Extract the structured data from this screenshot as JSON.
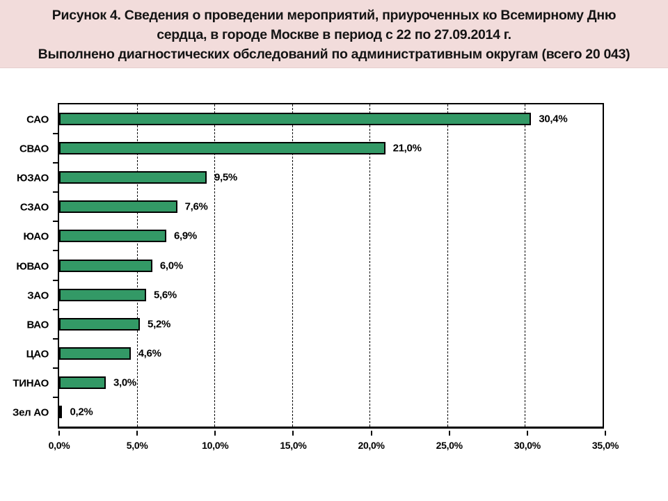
{
  "colors": {
    "title_bg": "#f2dcdb",
    "title_text": "#141414",
    "bar_fill": "#339966",
    "bar_border": "#000000",
    "axis": "#000000",
    "plot_bg": "#ffffff"
  },
  "chart_data": {
    "type": "bar",
    "orientation": "horizontal",
    "title_lines": [
      "Рисунок 4. Сведения о проведении мероприятий, приуроченных ко Всемирному Дню",
      "сердца, в городе Москве в период с 22 по 27.09.2014 г.",
      "Выполнено диагностических обследований по административным округам (всего 20 043)"
    ],
    "categories": [
      "САО",
      "СВАО",
      "ЮЗАО",
      "СЗАО",
      "ЮАО",
      "ЮВАО",
      "ЗАО",
      "ВАО",
      "ЦАО",
      "ТИНАО",
      "Зел АО"
    ],
    "values": [
      30.4,
      21.0,
      9.5,
      7.6,
      6.9,
      6.0,
      5.6,
      5.2,
      4.6,
      3.0,
      0.2
    ],
    "value_labels": [
      "30,4%",
      "21,0%",
      "9,5%",
      "7,6%",
      "6,9%",
      "6,0%",
      "5,6%",
      "5,2%",
      "4,6%",
      "3,0%",
      "0,2%"
    ],
    "xlim": [
      0,
      35
    ],
    "x_ticks": [
      0,
      5,
      10,
      15,
      20,
      25,
      30,
      35
    ],
    "x_tick_labels": [
      "0,0%",
      "5,0%",
      "10,0%",
      "15,0%",
      "20,0%",
      "25,0%",
      "30,0%",
      "35,0%"
    ],
    "xlabel": "",
    "ylabel": "",
    "legend": "none",
    "grid": "vertical dashed gridlines every 5%"
  }
}
